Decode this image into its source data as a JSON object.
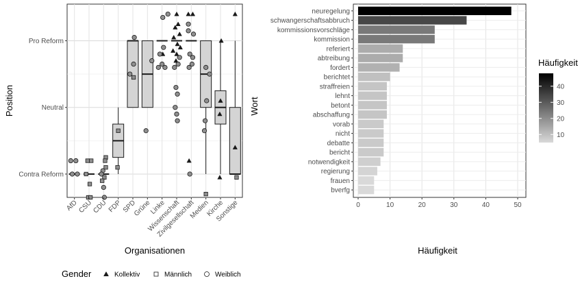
{
  "chart_data": [
    {
      "type": "box",
      "xlabel": "Organisationen",
      "ylabel": "Position",
      "categories": [
        "AfD",
        "CSU",
        "CDU",
        "FDP",
        "SPD",
        "Grüne",
        "Linke",
        "Wissenschaft",
        "Zivilgesellschaft",
        "Medien",
        "Kirche",
        "Sonstige"
      ],
      "y_ticks": [
        {
          "value": -1,
          "label": "Contra Reform"
        },
        {
          "value": 0,
          "label": "Neutral"
        },
        {
          "value": 1,
          "label": "Pro Reform"
        }
      ],
      "ylim": [
        -1.35,
        1.55
      ],
      "boxes": [
        {
          "cat": "AfD",
          "low": -1,
          "q1": -1,
          "median": -1,
          "q3": -1,
          "high": -1
        },
        {
          "cat": "CSU",
          "low": -1,
          "q1": -1,
          "median": -1,
          "q3": -1,
          "high": -1
        },
        {
          "cat": "CDU",
          "low": -1,
          "q1": -1,
          "median": -1,
          "q3": -1,
          "high": -1
        },
        {
          "cat": "FDP",
          "low": -1,
          "q1": -0.75,
          "median": -0.5,
          "q3": -0.25,
          "high": 0
        },
        {
          "cat": "SPD",
          "low": 0,
          "q1": 0,
          "median": 1,
          "q3": 1,
          "high": 1
        },
        {
          "cat": "Grüne",
          "low": 0,
          "q1": 0,
          "median": 0.5,
          "q3": 1,
          "high": 1
        },
        {
          "cat": "Linke",
          "low": 1,
          "q1": 1,
          "median": 1,
          "q3": 1,
          "high": 1
        },
        {
          "cat": "Wissenschaft",
          "low": 1,
          "q1": 1,
          "median": 1,
          "q3": 1,
          "high": 1
        },
        {
          "cat": "Zivilgesellschaft",
          "low": 1,
          "q1": 1,
          "median": 1,
          "q3": 1,
          "high": 1
        },
        {
          "cat": "Medien",
          "low": -1,
          "q1": 0,
          "median": 0.5,
          "q3": 1,
          "high": 1
        },
        {
          "cat": "Kirche",
          "low": -1,
          "q1": -0.25,
          "median": 0,
          "q3": 0.25,
          "high": 1
        },
        {
          "cat": "Sonstige",
          "low": -1,
          "q1": -1,
          "median": -1,
          "q3": 0,
          "high": 1
        }
      ],
      "points": [
        {
          "cat": "AfD",
          "y": -0.8,
          "g": "f",
          "dx": -0.25
        },
        {
          "cat": "AfD",
          "y": -0.8,
          "g": "f",
          "dx": 0.1
        },
        {
          "cat": "AfD",
          "y": -1.0,
          "g": "f",
          "dx": -0.15
        },
        {
          "cat": "AfD",
          "y": -1.0,
          "g": "f",
          "dx": 0.2
        },
        {
          "cat": "CSU",
          "y": -0.8,
          "g": "m",
          "dx": -0.1
        },
        {
          "cat": "CSU",
          "y": -0.8,
          "g": "m",
          "dx": 0.15
        },
        {
          "cat": "CSU",
          "y": -1.0,
          "g": "m",
          "dx": -0.2
        },
        {
          "cat": "CSU",
          "y": -1.15,
          "g": "m",
          "dx": 0.05
        },
        {
          "cat": "CSU",
          "y": -1.35,
          "g": "m",
          "dx": -0.05
        },
        {
          "cat": "CSU",
          "y": -1.35,
          "g": "m",
          "dx": 0.1
        },
        {
          "cat": "CDU",
          "y": -0.75,
          "g": "m",
          "dx": 0.15
        },
        {
          "cat": "CDU",
          "y": -0.8,
          "g": "m",
          "dx": 0.1
        },
        {
          "cat": "CDU",
          "y": -0.9,
          "g": "m",
          "dx": 0.15
        },
        {
          "cat": "CDU",
          "y": -0.95,
          "g": "f",
          "dx": -0.05
        },
        {
          "cat": "CDU",
          "y": -1.0,
          "g": "f",
          "dx": -0.15
        },
        {
          "cat": "CDU",
          "y": -1.05,
          "g": "m",
          "dx": 0.05
        },
        {
          "cat": "CDU",
          "y": -1.1,
          "g": "m",
          "dx": -0.1
        },
        {
          "cat": "CDU",
          "y": -1.2,
          "g": "f",
          "dx": 0.0
        },
        {
          "cat": "CDU",
          "y": -1.35,
          "g": "f",
          "dx": 0.05
        },
        {
          "cat": "FDP",
          "y": -0.35,
          "g": "m",
          "dx": 0.0
        },
        {
          "cat": "FDP",
          "y": -0.9,
          "g": "m",
          "dx": -0.05
        },
        {
          "cat": "SPD",
          "y": 1.05,
          "g": "f",
          "dx": 0.1
        },
        {
          "cat": "SPD",
          "y": 0.65,
          "g": "f",
          "dx": 0.05
        },
        {
          "cat": "SPD",
          "y": 0.5,
          "g": "f",
          "dx": -0.2
        },
        {
          "cat": "SPD",
          "y": 0.45,
          "g": "m",
          "dx": 0.05
        },
        {
          "cat": "Grüne",
          "y": 0.7,
          "g": "f",
          "dx": 0.3
        },
        {
          "cat": "Grüne",
          "y": -0.35,
          "g": "f",
          "dx": -0.1
        },
        {
          "cat": "Linke",
          "y": 1.4,
          "g": "f",
          "dx": 0.4
        },
        {
          "cat": "Linke",
          "y": 1.35,
          "g": "f",
          "dx": 0.05
        },
        {
          "cat": "Linke",
          "y": 0.9,
          "g": "f",
          "dx": 0.1
        },
        {
          "cat": "Linke",
          "y": 0.8,
          "g": "c",
          "dx": 0.05
        },
        {
          "cat": "Linke",
          "y": 0.8,
          "g": "f",
          "dx": -0.15
        },
        {
          "cat": "Linke",
          "y": 0.65,
          "g": "f",
          "dx": 0.0
        },
        {
          "cat": "Linke",
          "y": 0.6,
          "g": "f",
          "dx": 0.2
        },
        {
          "cat": "Linke",
          "y": 0.6,
          "g": "f",
          "dx": -0.25
        },
        {
          "cat": "Wissenschaft",
          "y": 1.4,
          "g": "c",
          "dx": 0.0
        },
        {
          "cat": "Wissenschaft",
          "y": 1.25,
          "g": "c",
          "dx": 0.1
        },
        {
          "cat": "Wissenschaft",
          "y": 1.2,
          "g": "c",
          "dx": -0.1
        },
        {
          "cat": "Wissenschaft",
          "y": 1.1,
          "g": "c",
          "dx": 0.2
        },
        {
          "cat": "Wissenschaft",
          "y": 1.05,
          "g": "c",
          "dx": -0.2
        },
        {
          "cat": "Wissenschaft",
          "y": 0.95,
          "g": "c",
          "dx": 0.05
        },
        {
          "cat": "Wissenschaft",
          "y": 0.9,
          "g": "c",
          "dx": 0.25
        },
        {
          "cat": "Wissenschaft",
          "y": 0.85,
          "g": "c",
          "dx": -0.25
        },
        {
          "cat": "Wissenschaft",
          "y": 0.8,
          "g": "c",
          "dx": 0.0
        },
        {
          "cat": "Wissenschaft",
          "y": 0.75,
          "g": "f",
          "dx": 0.2
        },
        {
          "cat": "Wissenschaft",
          "y": 0.7,
          "g": "c",
          "dx": -0.05
        },
        {
          "cat": "Wissenschaft",
          "y": 0.65,
          "g": "f",
          "dx": 0.1
        },
        {
          "cat": "Wissenschaft",
          "y": 0.6,
          "g": "f",
          "dx": -0.15
        },
        {
          "cat": "Wissenschaft",
          "y": 0.3,
          "g": "f",
          "dx": -0.05
        },
        {
          "cat": "Wissenschaft",
          "y": 0.2,
          "g": "f",
          "dx": 0.05
        },
        {
          "cat": "Wissenschaft",
          "y": 0.0,
          "g": "f",
          "dx": -0.1
        },
        {
          "cat": "Wissenschaft",
          "y": -0.1,
          "g": "f",
          "dx": 0.0
        },
        {
          "cat": "Wissenschaft",
          "y": -0.2,
          "g": "f",
          "dx": 0.05
        },
        {
          "cat": "Zivilgesellschaft",
          "y": 1.4,
          "g": "c",
          "dx": -0.2
        },
        {
          "cat": "Zivilgesellschaft",
          "y": 1.4,
          "g": "c",
          "dx": 0.1
        },
        {
          "cat": "Zivilgesellschaft",
          "y": 1.25,
          "g": "f",
          "dx": -0.2
        },
        {
          "cat": "Zivilgesellschaft",
          "y": 1.15,
          "g": "f",
          "dx": -0.2
        },
        {
          "cat": "Zivilgesellschaft",
          "y": 1.1,
          "g": "f",
          "dx": 0.15
        },
        {
          "cat": "Zivilgesellschaft",
          "y": 0.8,
          "g": "f",
          "dx": -0.1
        },
        {
          "cat": "Zivilgesellschaft",
          "y": 0.75,
          "g": "f",
          "dx": 0.1
        },
        {
          "cat": "Zivilgesellschaft",
          "y": 0.65,
          "g": "f",
          "dx": 0.05
        },
        {
          "cat": "Zivilgesellschaft",
          "y": 0.6,
          "g": "f",
          "dx": -0.15
        },
        {
          "cat": "Zivilgesellschaft",
          "y": -0.8,
          "g": "c",
          "dx": -0.15
        },
        {
          "cat": "Zivilgesellschaft",
          "y": -1.0,
          "g": "f",
          "dx": -0.1
        },
        {
          "cat": "Medien",
          "y": 0.6,
          "g": "f",
          "dx": 0.0
        },
        {
          "cat": "Medien",
          "y": 0.5,
          "g": "f",
          "dx": 0.25
        },
        {
          "cat": "Medien",
          "y": 0.1,
          "g": "f",
          "dx": 0.05
        },
        {
          "cat": "Medien",
          "y": -0.2,
          "g": "f",
          "dx": -0.05
        },
        {
          "cat": "Medien",
          "y": -0.35,
          "g": "f",
          "dx": -0.1
        },
        {
          "cat": "Medien",
          "y": -1.3,
          "g": "m",
          "dx": 0.0
        },
        {
          "cat": "Kirche",
          "y": 1.0,
          "g": "c",
          "dx": 0.05
        },
        {
          "cat": "Kirche",
          "y": 0.1,
          "g": "c",
          "dx": 0.0
        },
        {
          "cat": "Kirche",
          "y": -0.1,
          "g": "c",
          "dx": -0.05
        },
        {
          "cat": "Kirche",
          "y": -1.05,
          "g": "c",
          "dx": -0.05
        },
        {
          "cat": "Sonstige",
          "y": 1.4,
          "g": "c",
          "dx": 0.0
        },
        {
          "cat": "Sonstige",
          "y": -0.6,
          "g": "c",
          "dx": 0.0
        },
        {
          "cat": "Sonstige",
          "y": -1.05,
          "g": "m",
          "dx": 0.1
        }
      ],
      "legend": {
        "title": "Gender",
        "position": "bottom",
        "items": [
          {
            "key": "c",
            "label": "Kollektiv",
            "shape": "triangle"
          },
          {
            "key": "m",
            "label": "Männlich",
            "shape": "square"
          },
          {
            "key": "f",
            "label": "Weiblich",
            "shape": "circle"
          }
        ]
      }
    },
    {
      "type": "bar",
      "orientation": "horizontal",
      "xlabel": "Häufigkeit",
      "ylabel": "Wort",
      "x_ticks": [
        0,
        10,
        20,
        30,
        40,
        50
      ],
      "xlim": [
        0,
        50
      ],
      "categories": [
        "neuregelung",
        "schwangerschaftsabbruch",
        "kommissionsvorschläge",
        "kommission",
        "referiert",
        "abtreibung",
        "fordert",
        "berichtet",
        "straffreien",
        "lehnt",
        "betont",
        "abschaffung",
        "vorab",
        "nicht",
        "debatte",
        "bericht",
        "notwendigkeit",
        "regierung",
        "frauen",
        "bverfg"
      ],
      "values": [
        48,
        34,
        24,
        24,
        14,
        14,
        13,
        10,
        9,
        9,
        9,
        9,
        8,
        8,
        8,
        8,
        7,
        6,
        5,
        5
      ],
      "legend": {
        "title": "Häufigkeit",
        "position": "right",
        "type": "colorbar",
        "ticks": [
          10,
          20,
          30,
          40
        ],
        "range": [
          5,
          48
        ],
        "color_low": "#d9d9d9",
        "color_high": "#000000"
      }
    }
  ]
}
